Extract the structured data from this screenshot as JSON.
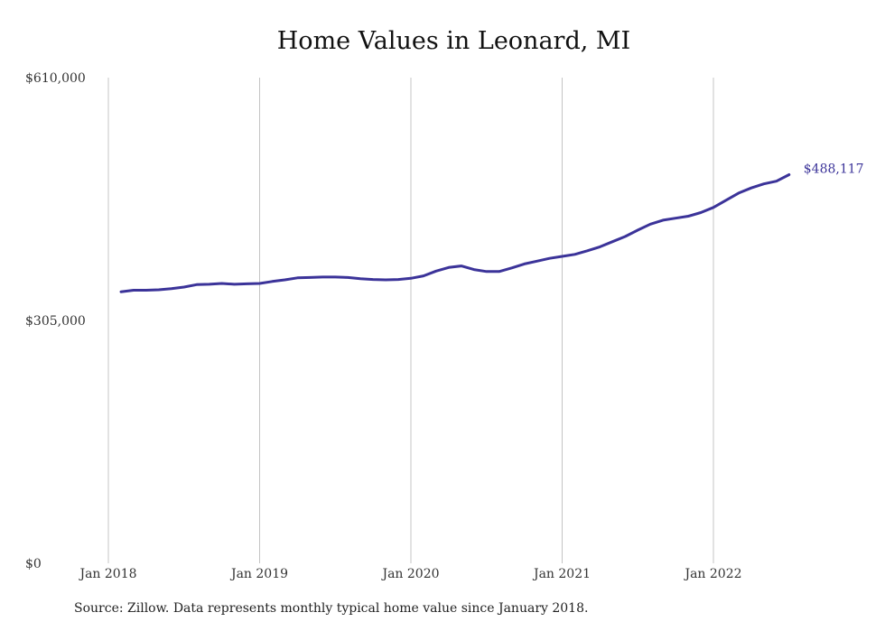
{
  "chart_data": {
    "type": "line",
    "title": "Home Values in Leonard, MI",
    "xlabel": "",
    "ylabel": "",
    "ylim": [
      0,
      610000
    ],
    "y_ticks": [
      "$610,000",
      "$305,000",
      "$0"
    ],
    "y_tick_values": [
      610000,
      305000,
      0
    ],
    "x_ticks": [
      "Jan 2018",
      "Jan 2019",
      "Jan 2020",
      "Jan 2021",
      "Jan 2022"
    ],
    "x_tick_dates": [
      "2018-01",
      "2019-01",
      "2020-01",
      "2021-01",
      "2022-01"
    ],
    "grid": "vertical lines at year ticks",
    "series": [
      {
        "color": "#3b3399",
        "x": [
          "2018-02",
          "2018-03",
          "2018-04",
          "2018-05",
          "2018-06",
          "2018-07",
          "2018-08",
          "2018-09",
          "2018-10",
          "2018-11",
          "2018-12",
          "2019-01",
          "2019-02",
          "2019-03",
          "2019-04",
          "2019-05",
          "2019-06",
          "2019-07",
          "2019-08",
          "2019-09",
          "2019-10",
          "2019-11",
          "2019-12",
          "2020-01",
          "2020-02",
          "2020-03",
          "2020-04",
          "2020-05",
          "2020-06",
          "2020-07",
          "2020-08",
          "2020-09",
          "2020-10",
          "2020-11",
          "2020-12",
          "2021-01",
          "2021-02",
          "2021-03",
          "2021-04",
          "2021-05",
          "2021-06",
          "2021-07",
          "2021-08",
          "2021-09",
          "2021-10",
          "2021-11",
          "2021-12",
          "2022-01",
          "2022-02",
          "2022-03",
          "2022-04",
          "2022-05",
          "2022-06",
          "2022-07"
        ],
        "values": [
          341000,
          343000,
          343000,
          343500,
          345000,
          347000,
          350000,
          350500,
          351500,
          350500,
          351000,
          351500,
          354000,
          356000,
          358500,
          359000,
          359500,
          359500,
          359000,
          357500,
          356500,
          356000,
          356500,
          358000,
          361000,
          367000,
          371500,
          373500,
          369000,
          366500,
          366500,
          371000,
          376000,
          379500,
          383000,
          385500,
          388000,
          392500,
          397500,
          404000,
          410500,
          418500,
          426000,
          431000,
          433500,
          436000,
          440500,
          447000,
          456000,
          465000,
          471500,
          476500,
          480000,
          488117
        ]
      }
    ],
    "end_label": "$488,117"
  },
  "source_note": "Source: Zillow. Data represents monthly typical home value since January 2018."
}
